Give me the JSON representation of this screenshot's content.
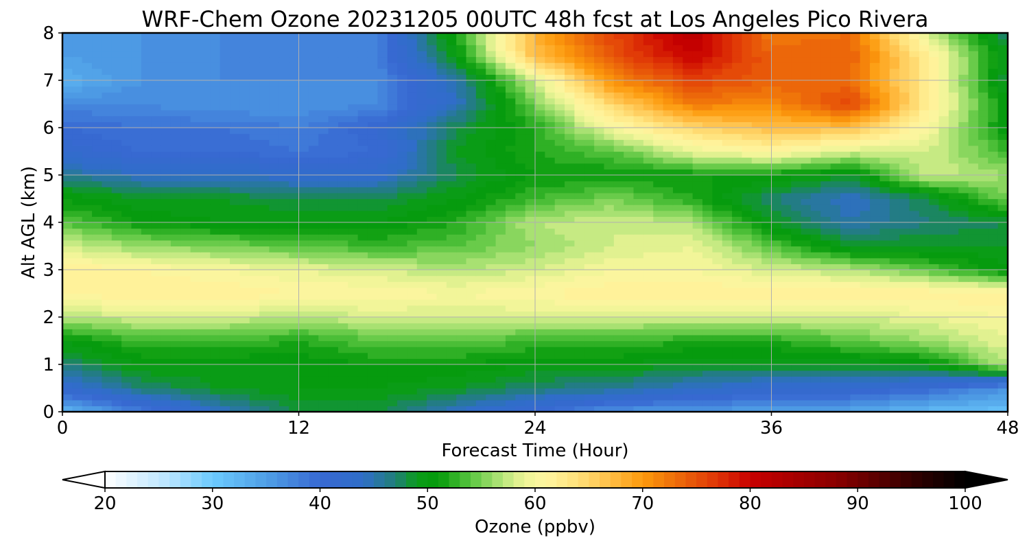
{
  "chart_data": {
    "type": "heatmap",
    "title": "WRF-Chem Ozone  20231205 00UTC 48h fcst at Los Angeles Pico Rivera",
    "xlabel": "Forecast Time (Hour)",
    "ylabel": "Alt AGL (km)",
    "xlim": [
      0,
      48
    ],
    "ylim": [
      0,
      8
    ],
    "x_ticks": [
      0,
      12,
      24,
      36,
      48
    ],
    "y_ticks": [
      0,
      1,
      2,
      3,
      4,
      5,
      6,
      7,
      8
    ],
    "grid": true,
    "x": [
      0,
      4,
      8,
      12,
      16,
      20,
      24,
      28,
      32,
      36,
      40,
      44,
      48
    ],
    "y": [
      0,
      0.5,
      1,
      1.5,
      2,
      2.5,
      3,
      3.5,
      4,
      4.5,
      5,
      5.5,
      6,
      6.5,
      7,
      7.5,
      8
    ],
    "z": [
      [
        32,
        38,
        44,
        48,
        48,
        44,
        40,
        36,
        35,
        35,
        34,
        32,
        31
      ],
      [
        42,
        47,
        49,
        50,
        50,
        49,
        47,
        46,
        44,
        42,
        42,
        40,
        36
      ],
      [
        47,
        50,
        50,
        50,
        51,
        51,
        50,
        50,
        49,
        49,
        49,
        50,
        57
      ],
      [
        50,
        53,
        53,
        52,
        54,
        54,
        53,
        53,
        52,
        52,
        54,
        56,
        59
      ],
      [
        57,
        58,
        58,
        57,
        58,
        58,
        58,
        58,
        58,
        58,
        58,
        59,
        60
      ],
      [
        61,
        62,
        62,
        61,
        61,
        60,
        61,
        62,
        62,
        62,
        62,
        62,
        62
      ],
      [
        62,
        61,
        60,
        59,
        58,
        57,
        58,
        60,
        60,
        58,
        57,
        54,
        50
      ],
      [
        58,
        56,
        55,
        54,
        53,
        54,
        56,
        58,
        59,
        54,
        49,
        49,
        49
      ],
      [
        54,
        51,
        50,
        50,
        50,
        52,
        57,
        58,
        57,
        49,
        45,
        47,
        48
      ],
      [
        51,
        49,
        49,
        48,
        48,
        50,
        53,
        55,
        52,
        47,
        44,
        48,
        55
      ],
      [
        46,
        44,
        44,
        43,
        43,
        48,
        51,
        51,
        51,
        51,
        49,
        58,
        56
      ],
      [
        42,
        40,
        40,
        39,
        40,
        49,
        52,
        54,
        59,
        61,
        58,
        58,
        53
      ],
      [
        40,
        39,
        39,
        38,
        41,
        48,
        52,
        60,
        65,
        67,
        67,
        60,
        50
      ],
      [
        37,
        37,
        36,
        36,
        37,
        44,
        55,
        65,
        72,
        71,
        76,
        62,
        50
      ],
      [
        33,
        36,
        37,
        37,
        37,
        45,
        58,
        71,
        76,
        74,
        73,
        62,
        48
      ],
      [
        35,
        36,
        37,
        37,
        38,
        50,
        67,
        75,
        80,
        74,
        74,
        62,
        49
      ],
      [
        36,
        36,
        37,
        37,
        38,
        52,
        68,
        76,
        82,
        72,
        73,
        58,
        47
      ]
    ],
    "colorbar": {
      "label": "Ozone  (ppbv)",
      "min": 20,
      "max": 100,
      "step": 1,
      "extend": "both",
      "ticks": [
        20,
        30,
        40,
        50,
        60,
        70,
        80,
        90,
        100
      ],
      "stops": [
        [
          20,
          "#ffffff"
        ],
        [
          26,
          "#b7e4ff"
        ],
        [
          30,
          "#6ccafe"
        ],
        [
          35,
          "#4f9fe6"
        ],
        [
          40,
          "#3868d2"
        ],
        [
          44,
          "#2f6ec8"
        ],
        [
          47,
          "#207f78"
        ],
        [
          49,
          "#0c9c1a"
        ],
        [
          51,
          "#049a0a"
        ],
        [
          54,
          "#59c540"
        ],
        [
          57,
          "#b8e67c"
        ],
        [
          59,
          "#eef596"
        ],
        [
          61,
          "#fff5a0"
        ],
        [
          64,
          "#ffe07a"
        ],
        [
          67,
          "#ffbe46"
        ],
        [
          70,
          "#fc9a0c"
        ],
        [
          73,
          "#ee6e0a"
        ],
        [
          77,
          "#df3406"
        ],
        [
          80,
          "#c80000"
        ],
        [
          84,
          "#a80000"
        ],
        [
          88,
          "#8a0000"
        ],
        [
          92,
          "#580000"
        ],
        [
          96,
          "#280000"
        ],
        [
          100,
          "#000000"
        ]
      ]
    }
  }
}
